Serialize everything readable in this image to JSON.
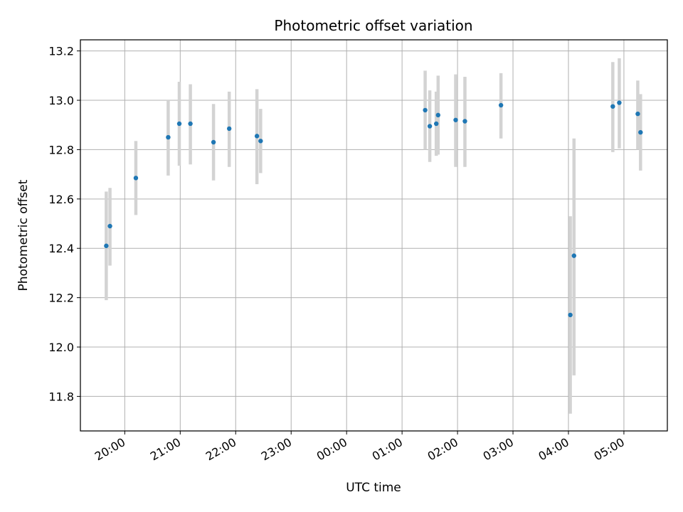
{
  "chart_data": {
    "type": "scatter",
    "title": "Photometric offset variation",
    "xlabel": "UTC time",
    "ylabel": "Photometric offset",
    "x_tick_labels": [
      "20:00",
      "21:00",
      "22:00",
      "23:00",
      "00:00",
      "01:00",
      "02:00",
      "03:00",
      "04:00",
      "05:00"
    ],
    "y_tick_labels": [
      "11.8",
      "12.0",
      "12.2",
      "12.4",
      "12.6",
      "12.8",
      "13.0",
      "13.2"
    ],
    "y_ticks": [
      11.8,
      12.0,
      12.2,
      12.4,
      12.6,
      12.8,
      13.0,
      13.2
    ],
    "xlim": [
      "19:12",
      "05:47"
    ],
    "ylim": [
      11.66,
      13.245
    ],
    "grid": true,
    "point_color": "#1f77b4",
    "errorbar_color": "#d3d3d3",
    "series": [
      {
        "points": [
          {
            "x": "19:40",
            "y": 12.41,
            "y_low": 12.19,
            "y_high": 12.63
          },
          {
            "x": "19:44",
            "y": 12.49,
            "y_low": 12.33,
            "y_high": 12.645
          },
          {
            "x": "20:12",
            "y": 12.685,
            "y_low": 12.535,
            "y_high": 12.835
          },
          {
            "x": "20:47",
            "y": 12.85,
            "y_low": 12.695,
            "y_high": 13.0
          },
          {
            "x": "20:59",
            "y": 12.905,
            "y_low": 12.735,
            "y_high": 13.075
          },
          {
            "x": "21:11",
            "y": 12.905,
            "y_low": 12.74,
            "y_high": 13.065
          },
          {
            "x": "21:36",
            "y": 12.83,
            "y_low": 12.675,
            "y_high": 12.985
          },
          {
            "x": "21:53",
            "y": 12.885,
            "y_low": 12.73,
            "y_high": 13.035
          },
          {
            "x": "22:23",
            "y": 12.855,
            "y_low": 12.66,
            "y_high": 13.045
          },
          {
            "x": "22:27",
            "y": 12.835,
            "y_low": 12.705,
            "y_high": 12.965
          },
          {
            "x": "01:25",
            "y": 12.96,
            "y_low": 12.8,
            "y_high": 13.12
          },
          {
            "x": "01:30",
            "y": 12.895,
            "y_low": 12.75,
            "y_high": 13.04
          },
          {
            "x": "01:37",
            "y": 12.905,
            "y_low": 12.775,
            "y_high": 13.035
          },
          {
            "x": "01:39",
            "y": 12.94,
            "y_low": 12.78,
            "y_high": 13.1
          },
          {
            "x": "01:58",
            "y": 12.92,
            "y_low": 12.73,
            "y_high": 13.105
          },
          {
            "x": "02:08",
            "y": 12.915,
            "y_low": 12.73,
            "y_high": 13.095
          },
          {
            "x": "02:47",
            "y": 12.98,
            "y_low": 12.845,
            "y_high": 13.11
          },
          {
            "x": "04:02",
            "y": 12.13,
            "y_low": 11.73,
            "y_high": 12.53
          },
          {
            "x": "04:06",
            "y": 12.37,
            "y_low": 11.885,
            "y_high": 12.845
          },
          {
            "x": "04:48",
            "y": 12.975,
            "y_low": 12.79,
            "y_high": 13.155
          },
          {
            "x": "04:55",
            "y": 12.99,
            "y_low": 12.805,
            "y_high": 13.17
          },
          {
            "x": "05:15",
            "y": 12.945,
            "y_low": 12.8,
            "y_high": 13.08
          },
          {
            "x": "05:18",
            "y": 12.87,
            "y_low": 12.715,
            "y_high": 13.025
          }
        ]
      }
    ]
  }
}
